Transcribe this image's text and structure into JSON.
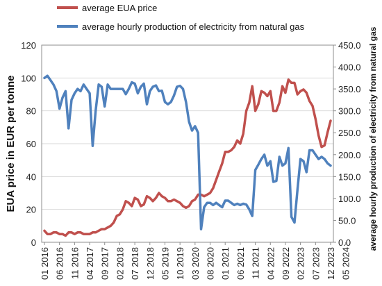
{
  "chart_data": {
    "type": "line",
    "legend_position": "top",
    "grid": "horizontal",
    "x_tick_labels": [
      "01 2016",
      "06 2016",
      "11 2016",
      "04 2017",
      "09 2017",
      "02 2018",
      "07 2018",
      "12 2018",
      "05 2019",
      "10 2019",
      "03 2020",
      "08 2020",
      "01 2021",
      "06 2021",
      "11 2021",
      "04 2022",
      "09 2022",
      "02 2023",
      "07 2023",
      "12 2023",
      "05 2024"
    ],
    "left_axis": {
      "label": "EUA price in EUR per tonne",
      "range": [
        0,
        120
      ],
      "ticks": [
        "0",
        "20",
        "40",
        "60",
        "80",
        "100",
        "120"
      ]
    },
    "right_axis": {
      "label": "average hourly production of electricity from natural gas",
      "range": [
        0,
        450
      ],
      "ticks": [
        "0.0",
        "50.0",
        "100.0",
        "150.0",
        "200.0",
        "250.0",
        "300.0",
        "350.0",
        "400.0",
        "450.0"
      ]
    },
    "series": [
      {
        "name": "average EUA price",
        "axis": "left",
        "color": "#c0504d",
        "values": [
          7,
          5,
          5,
          6,
          6,
          5,
          5,
          4,
          6,
          6,
          5,
          6,
          6,
          5,
          5,
          5,
          6,
          6,
          7,
          8,
          8,
          9,
          10,
          12,
          16,
          17,
          20,
          25,
          24,
          22,
          27,
          26,
          22,
          23,
          28,
          27,
          25,
          27,
          30,
          28,
          27,
          25,
          25,
          26,
          25,
          24,
          22,
          21,
          22,
          25,
          26,
          29,
          29,
          28,
          29,
          30,
          33,
          38,
          43,
          48,
          55,
          55,
          56,
          58,
          62,
          60,
          66,
          80,
          85,
          95,
          80,
          84,
          92,
          91,
          89,
          92,
          80,
          80,
          85,
          95,
          91,
          99,
          97,
          97,
          90,
          92,
          93,
          91,
          86,
          83,
          75,
          65,
          58,
          59,
          67,
          74
        ]
      },
      {
        "name": "average hourly production of electricity from natural gas",
        "axis": "right",
        "color": "#4f81bd",
        "values": [
          375,
          380,
          370,
          360,
          345,
          305,
          330,
          345,
          260,
          325,
          340,
          350,
          345,
          360,
          350,
          340,
          220,
          300,
          360,
          355,
          310,
          360,
          350,
          350,
          350,
          350,
          350,
          338,
          350,
          365,
          362,
          340,
          355,
          362,
          315,
          345,
          355,
          358,
          345,
          346,
          320,
          315,
          320,
          335,
          355,
          357,
          350,
          320,
          275,
          255,
          265,
          250,
          30,
          80,
          90,
          90,
          85,
          90,
          85,
          80,
          95,
          95,
          90,
          85,
          88,
          85,
          88,
          86,
          75,
          60,
          165,
          177,
          190,
          200,
          175,
          185,
          138,
          140,
          195,
          175,
          180,
          215,
          58,
          45,
          120,
          190,
          185,
          160,
          210,
          210,
          200,
          190,
          195,
          190,
          180,
          175
        ]
      }
    ]
  }
}
